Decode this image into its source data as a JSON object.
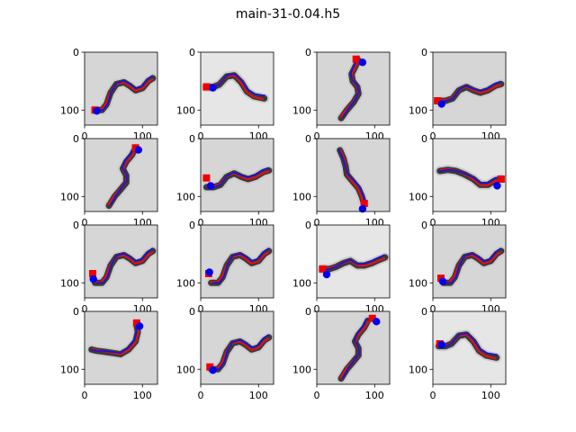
{
  "figure": {
    "title": "main-31-0.04.h5"
  },
  "colors": {
    "worm_body": "#3a3a3a",
    "trace_red": "#dd1111",
    "trace_blue": "#1111ee",
    "start_marker": "#ee0000",
    "end_marker": "#0000ee"
  },
  "chart_data": [
    {
      "type": "image-overlay",
      "shape": "S-right",
      "bg": "#d6d6d6",
      "start": [
        18,
        100
      ],
      "end": [
        18,
        100
      ],
      "xticks": [
        "0",
        "100"
      ],
      "yticks": [
        "0",
        "100"
      ]
    },
    {
      "type": "image-overlay",
      "shape": "wave-left",
      "bg": "#e6e6e6",
      "start": [
        10,
        60
      ],
      "end": [
        18,
        60
      ],
      "xticks": [
        "0",
        "100"
      ],
      "yticks": [
        "0",
        "100"
      ]
    },
    {
      "type": "image-overlay",
      "shape": "vertical-top",
      "bg": "#d6d6d6",
      "start": [
        68,
        12
      ],
      "end": [
        76,
        16
      ],
      "xticks": [
        "0",
        "100"
      ],
      "yticks": [
        "0",
        "100"
      ]
    },
    {
      "type": "image-overlay",
      "shape": "wave-left-low",
      "bg": "#d6d6d6",
      "start": [
        8,
        84
      ],
      "end": [
        12,
        88
      ],
      "xticks": [
        "0",
        "100"
      ],
      "yticks": [
        "0",
        "100"
      ]
    },
    {
      "type": "image-overlay",
      "shape": "vertical-top-right",
      "bg": "#d6d6d6",
      "start": [
        88,
        16
      ],
      "end": [
        90,
        18
      ],
      "xticks": [
        "0",
        "100"
      ],
      "yticks": [
        "0",
        "100"
      ]
    },
    {
      "type": "image-overlay",
      "shape": "wave-left-low",
      "bg": "#d6d6d6",
      "start": [
        10,
        68
      ],
      "end": [
        14,
        80
      ],
      "xticks": [
        "0",
        "100"
      ],
      "yticks": [
        "0",
        "100"
      ]
    },
    {
      "type": "image-overlay",
      "shape": "vertical-bottom",
      "bg": "#d6d6d6",
      "start": [
        82,
        112
      ],
      "end": [
        76,
        120
      ],
      "xticks": [
        "0",
        "100"
      ],
      "yticks": [
        "0",
        "100"
      ]
    },
    {
      "type": "image-overlay",
      "shape": "wave-right",
      "bg": "#e6e6e6",
      "start": [
        118,
        70
      ],
      "end": [
        108,
        80
      ],
      "xticks": [
        "0",
        "100"
      ],
      "yticks": [
        "0",
        "100"
      ]
    },
    {
      "type": "image-overlay",
      "shape": "S-right",
      "bg": "#d6d6d6",
      "start": [
        14,
        84
      ],
      "end": [
        12,
        92
      ],
      "xticks": [
        "0",
        "100"
      ],
      "yticks": [
        "0",
        "100"
      ]
    },
    {
      "type": "image-overlay",
      "shape": "S-right",
      "bg": "#d6d6d6",
      "start": [
        14,
        84
      ],
      "end": [
        12,
        80
      ],
      "xticks": [
        "0",
        "100"
      ],
      "yticks": [
        "0",
        "100"
      ]
    },
    {
      "type": "image-overlay",
      "shape": "wave-low",
      "bg": "#e6e6e6",
      "start": [
        10,
        76
      ],
      "end": [
        14,
        84
      ],
      "xticks": [
        "0",
        "100"
      ],
      "yticks": [
        "0",
        "100"
      ]
    },
    {
      "type": "image-overlay",
      "shape": "S-right",
      "bg": "#d6d6d6",
      "start": [
        14,
        92
      ],
      "end": [
        14,
        96
      ],
      "xticks": [
        "0",
        "100"
      ],
      "yticks": [
        "0",
        "100"
      ]
    },
    {
      "type": "image-overlay",
      "shape": "hook",
      "bg": "#d6d6d6",
      "start": [
        90,
        20
      ],
      "end": [
        92,
        24
      ],
      "xticks": [
        "0",
        "100"
      ],
      "yticks": [
        "0",
        "100"
      ]
    },
    {
      "type": "image-overlay",
      "shape": "S-right",
      "bg": "#d6d6d6",
      "start": [
        16,
        96
      ],
      "end": [
        18,
        100
      ],
      "xticks": [
        "0",
        "100"
      ],
      "yticks": [
        "0",
        "100"
      ]
    },
    {
      "type": "image-overlay",
      "shape": "vertical-top-right",
      "bg": "#d6d6d6",
      "start": [
        96,
        12
      ],
      "end": [
        100,
        16
      ],
      "xticks": [
        "0",
        "100"
      ],
      "yticks": [
        "0",
        "100"
      ]
    },
    {
      "type": "image-overlay",
      "shape": "wave-left",
      "bg": "#e6e6e6",
      "start": [
        12,
        56
      ],
      "end": [
        12,
        56
      ],
      "xticks": [
        "0",
        "100"
      ],
      "yticks": [
        "0",
        "100"
      ]
    }
  ]
}
